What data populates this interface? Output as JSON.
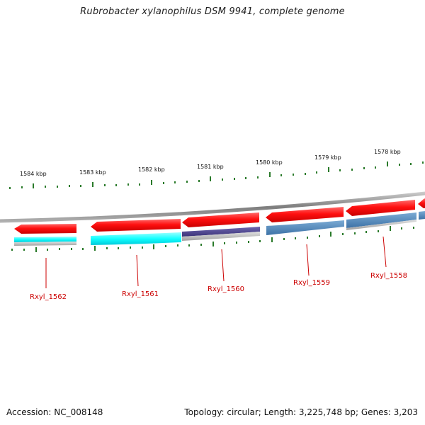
{
  "title": "Rubrobacter xylanophilus DSM 9941, complete genome",
  "footer": {
    "accession": "Accession: NC_008148",
    "summary": "Topology: circular; Length: 3,225,748 bp; Genes: 3,203"
  },
  "scale_labels": [
    "1584 kbp",
    "1583 kbp",
    "1582 kbp",
    "1581 kbp",
    "1580 kbp",
    "1579 kbp",
    "1578 kbp"
  ],
  "genes": [
    {
      "label": "Rxyl_1562",
      "strand": "reverse",
      "color": "#ff1a1a"
    },
    {
      "label": "Rxyl_1561",
      "strand": "reverse",
      "color": "#ff1a1a"
    },
    {
      "label": "Rxyl_1560",
      "strand": "reverse",
      "color": "#ff1a1a"
    },
    {
      "label": "Rxyl_1559",
      "strand": "reverse",
      "color": "#ff1a1a"
    },
    {
      "label": "Rxyl_1558",
      "strand": "reverse",
      "color": "#ff1a1a"
    }
  ],
  "colors": {
    "backbone": "#8a8a8a",
    "tick": "#2a7a2a",
    "cds": "#ff1a1a",
    "cyan": "#11ffff",
    "purple": "#4a3f8a",
    "steel": "#4f86b8",
    "gray": "#b8b8b8",
    "label": "#cc0000"
  }
}
